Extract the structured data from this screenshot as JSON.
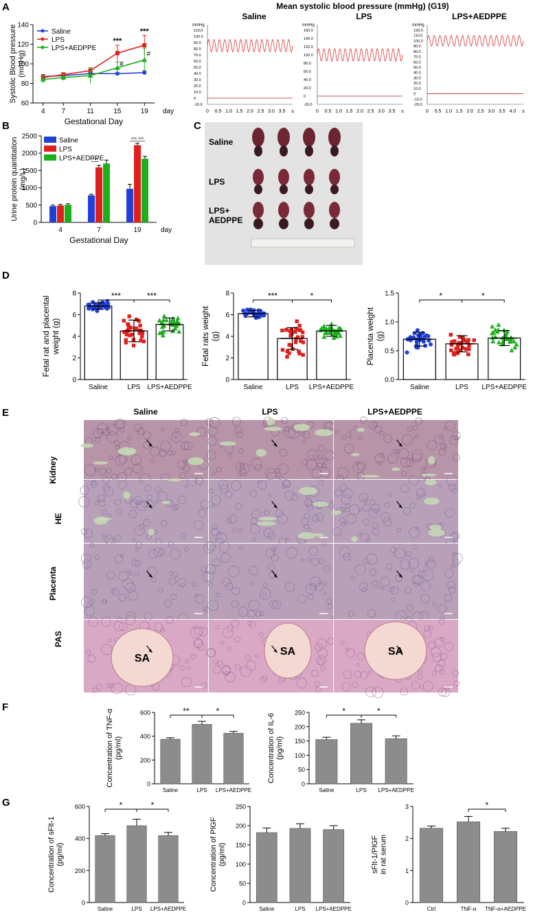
{
  "panels": {
    "A": "A",
    "B": "B",
    "C": "C",
    "D": "D",
    "E": "E",
    "F": "F",
    "G": "G"
  },
  "bp_header": "Mean systolic blood pressure (mmHg) (G19)",
  "traces": [
    {
      "title": "Saline",
      "unit": "mmHg",
      "yticks": [
        "110.0",
        "100.0",
        "90.0",
        "80.0",
        "70.0",
        "60.0",
        "50.0",
        "40.0",
        "30.0",
        "20.0",
        "10.0",
        "0",
        "-10.0"
      ],
      "xticks": [
        "0",
        "0.5",
        "1.0",
        "1.5",
        "2.0",
        "2.5",
        "3.0",
        "3.5",
        "s"
      ],
      "level": [
        75,
        95
      ]
    },
    {
      "title": "LPS",
      "unit": "mmHg",
      "yticks": [
        "160.0",
        "140.0",
        "120.0",
        "100.0",
        "80.0",
        "60.0",
        "40.0",
        "20.0",
        "0",
        "-20.0"
      ],
      "xticks": [
        "0",
        "0.5",
        "1.0",
        "1.5",
        "2.0",
        "2.5",
        "3.0",
        "3.5",
        "s"
      ],
      "level": [
        85,
        115
      ]
    },
    {
      "title": "LPS+AEDPPE",
      "unit": "mmHg",
      "yticks": [
        "120.0",
        "110.0",
        "100.0",
        "90.0",
        "80.0",
        "70.0",
        "60.0",
        "50.0",
        "40.0",
        "30.0",
        "20.0",
        "10.0",
        "0",
        "-10.0",
        "-20.0"
      ],
      "xticks": [
        "0",
        "0.5",
        "1.0",
        "1.5",
        "2.0",
        "2.5",
        "3.0",
        "3.5",
        "4.0",
        "s"
      ],
      "level": [
        90,
        110
      ]
    }
  ],
  "photo_c": {
    "rows": [
      "Saline",
      "LPS",
      "LPS+\nAEDPPE"
    ]
  },
  "histology": {
    "cols": [
      "Saline",
      "LPS",
      "LPS+AEDPPE"
    ],
    "rows": [
      "Kidney",
      "Placenta"
    ],
    "stains": [
      "HE",
      "PAS"
    ],
    "sa_label": "SA"
  },
  "chart_data": [
    {
      "id": "A",
      "type": "line",
      "xlabel": "Gestational Day",
      "xunit": "day",
      "ylabel": "Systolic Blood pressure\n(mmHg)",
      "x": [
        4,
        7,
        11,
        15,
        19
      ],
      "ylim": [
        60,
        140
      ],
      "yticks": [
        60,
        80,
        100,
        120,
        140
      ],
      "series": [
        {
          "name": "Saline",
          "color": "#1f3fd6",
          "marker": "circle",
          "values": [
            87,
            88,
            90,
            90,
            91
          ],
          "err": [
            2,
            1,
            1,
            1,
            2
          ]
        },
        {
          "name": "LPS",
          "color": "#e0201c",
          "marker": "square",
          "values": [
            86,
            89,
            93,
            111,
            119
          ],
          "err": [
            3,
            2,
            3,
            8,
            10
          ]
        },
        {
          "name": "LPS+AEDPPE",
          "color": "#1bb01b",
          "marker": "triangle",
          "values": [
            84,
            86,
            88,
            96,
            104
          ],
          "err": [
            4,
            3,
            8,
            6,
            12
          ]
        }
      ],
      "annotations": [
        {
          "x": 15,
          "text": "***"
        },
        {
          "x": 19,
          "text": "***"
        },
        {
          "x": 15,
          "text": "#"
        },
        {
          "x": 19,
          "text": "#"
        }
      ]
    },
    {
      "id": "B",
      "type": "bar",
      "xlabel": "Gestational Day",
      "xunit": "day",
      "ylabel": "Urine protein quantitation\n(mg/L)",
      "categories": [
        "4",
        "7",
        "19"
      ],
      "ylim": [
        0,
        2500
      ],
      "yticks": [
        0,
        500,
        1000,
        1500,
        2000,
        2500
      ],
      "series": [
        {
          "name": "Saline",
          "color": "#1f3fd6",
          "values": [
            470,
            780,
            970
          ],
          "err": [
            30,
            30,
            130
          ]
        },
        {
          "name": "LPS",
          "color": "#e0201c",
          "values": [
            490,
            1590,
            2230
          ],
          "err": [
            30,
            60,
            60
          ]
        },
        {
          "name": "LPS+AEDPPE",
          "color": "#1bb01b",
          "values": [
            510,
            1700,
            1840
          ],
          "err": [
            30,
            100,
            70
          ]
        }
      ],
      "annotations": [
        "***",
        "***",
        "***"
      ]
    },
    {
      "id": "D1",
      "type": "scatter",
      "ylabel": "Fetal rat and placental\nweight (g)",
      "categories": [
        "Saline",
        "LPS",
        "LPS+AEDPPE"
      ],
      "ylim": [
        0,
        8
      ],
      "yticks": [
        0,
        2,
        4,
        6,
        8
      ],
      "means": [
        6.8,
        4.5,
        5.1
      ],
      "sd": [
        0.3,
        1.0,
        0.6
      ],
      "colors": [
        "#1f3fd6",
        "#e0201c",
        "#1bb01b"
      ],
      "sig": [
        {
          "from": 0,
          "to": 1,
          "text": "***"
        },
        {
          "from": 1,
          "to": 2,
          "text": "***"
        }
      ]
    },
    {
      "id": "D2",
      "type": "scatter",
      "ylabel": "Fetal rats weight\n(g)",
      "categories": [
        "Saline",
        "LPS",
        "LPS+AEDPPE"
      ],
      "ylim": [
        0,
        8
      ],
      "yticks": [
        0,
        2,
        4,
        6,
        8
      ],
      "means": [
        6.1,
        3.8,
        4.5
      ],
      "sd": [
        0.3,
        1.0,
        0.5
      ],
      "colors": [
        "#1f3fd6",
        "#e0201c",
        "#1bb01b"
      ],
      "sig": [
        {
          "from": 0,
          "to": 1,
          "text": "***"
        },
        {
          "from": 1,
          "to": 2,
          "text": "*"
        }
      ]
    },
    {
      "id": "D3",
      "type": "scatter",
      "ylabel": "Placenta weight\n(g)",
      "categories": [
        "Saline",
        "LPS",
        "LPS+AEDPPE"
      ],
      "ylim": [
        0,
        1.5
      ],
      "yticks": [
        0.0,
        0.5,
        1.0,
        1.5
      ],
      "means": [
        0.7,
        0.62,
        0.72
      ],
      "sd": [
        0.12,
        0.14,
        0.13
      ],
      "colors": [
        "#1f3fd6",
        "#e0201c",
        "#1bb01b"
      ],
      "sig": [
        {
          "from": 0,
          "to": 1,
          "text": "*"
        },
        {
          "from": 1,
          "to": 2,
          "text": "*"
        }
      ]
    },
    {
      "id": "F1",
      "type": "bar",
      "ylabel": "Concentration of TNF-α\n(pg/ml)",
      "categories": [
        "Saline",
        "LPS",
        "LPS+AEDPPE"
      ],
      "ylim": [
        0,
        600
      ],
      "yticks": [
        0,
        200,
        400,
        600
      ],
      "values": [
        375,
        500,
        425
      ],
      "err": [
        12,
        25,
        15
      ],
      "sig": [
        {
          "from": 0,
          "to": 1,
          "text": "**"
        },
        {
          "from": 1,
          "to": 2,
          "text": "*"
        }
      ]
    },
    {
      "id": "F2",
      "type": "bar",
      "ylabel": "Concentration of IL-6\n(pg/ml)",
      "categories": [
        "Saline",
        "LPS",
        "LPS+AEDPPE"
      ],
      "ylim": [
        0,
        250
      ],
      "yticks": [
        0,
        50,
        100,
        150,
        200,
        250
      ],
      "values": [
        155,
        212,
        158
      ],
      "err": [
        8,
        12,
        10
      ],
      "sig": [
        {
          "from": 0,
          "to": 1,
          "text": "*"
        },
        {
          "from": 1,
          "to": 2,
          "text": "*"
        }
      ]
    },
    {
      "id": "G1",
      "type": "bar",
      "ylabel": "Concentration of sFlt-1\n(pg/ml)",
      "categories": [
        "Saline",
        "LPS",
        "LPS+AEDPPE"
      ],
      "ylim": [
        0,
        600
      ],
      "yticks": [
        0,
        200,
        400,
        600
      ],
      "values": [
        418,
        480,
        418
      ],
      "err": [
        12,
        40,
        20
      ],
      "sig": [
        {
          "from": 0,
          "to": 1,
          "text": "*"
        },
        {
          "from": 1,
          "to": 2,
          "text": "*"
        }
      ]
    },
    {
      "id": "G2",
      "type": "bar",
      "ylabel": "Concentration of PlGF\n(pg/ml)",
      "categories": [
        "Saline",
        "LPS",
        "LPS+AEDPPE"
      ],
      "ylim": [
        0,
        250
      ],
      "yticks": [
        0,
        50,
        100,
        150,
        200,
        250
      ],
      "values": [
        182,
        193,
        190
      ],
      "err": [
        12,
        12,
        10
      ],
      "sig": []
    },
    {
      "id": "G3",
      "type": "bar",
      "ylabel": "sFlt-1/PlGF\nin rat serum",
      "categories": [
        "Ctrl",
        "TNF-α",
        "TNF-α+AEDPPE"
      ],
      "ylim": [
        0,
        3
      ],
      "yticks": [
        0,
        1,
        2,
        3
      ],
      "values": [
        2.32,
        2.52,
        2.22
      ],
      "err": [
        0.07,
        0.17,
        0.1
      ],
      "sig": [
        {
          "from": 1,
          "to": 2,
          "text": "*"
        }
      ]
    }
  ]
}
